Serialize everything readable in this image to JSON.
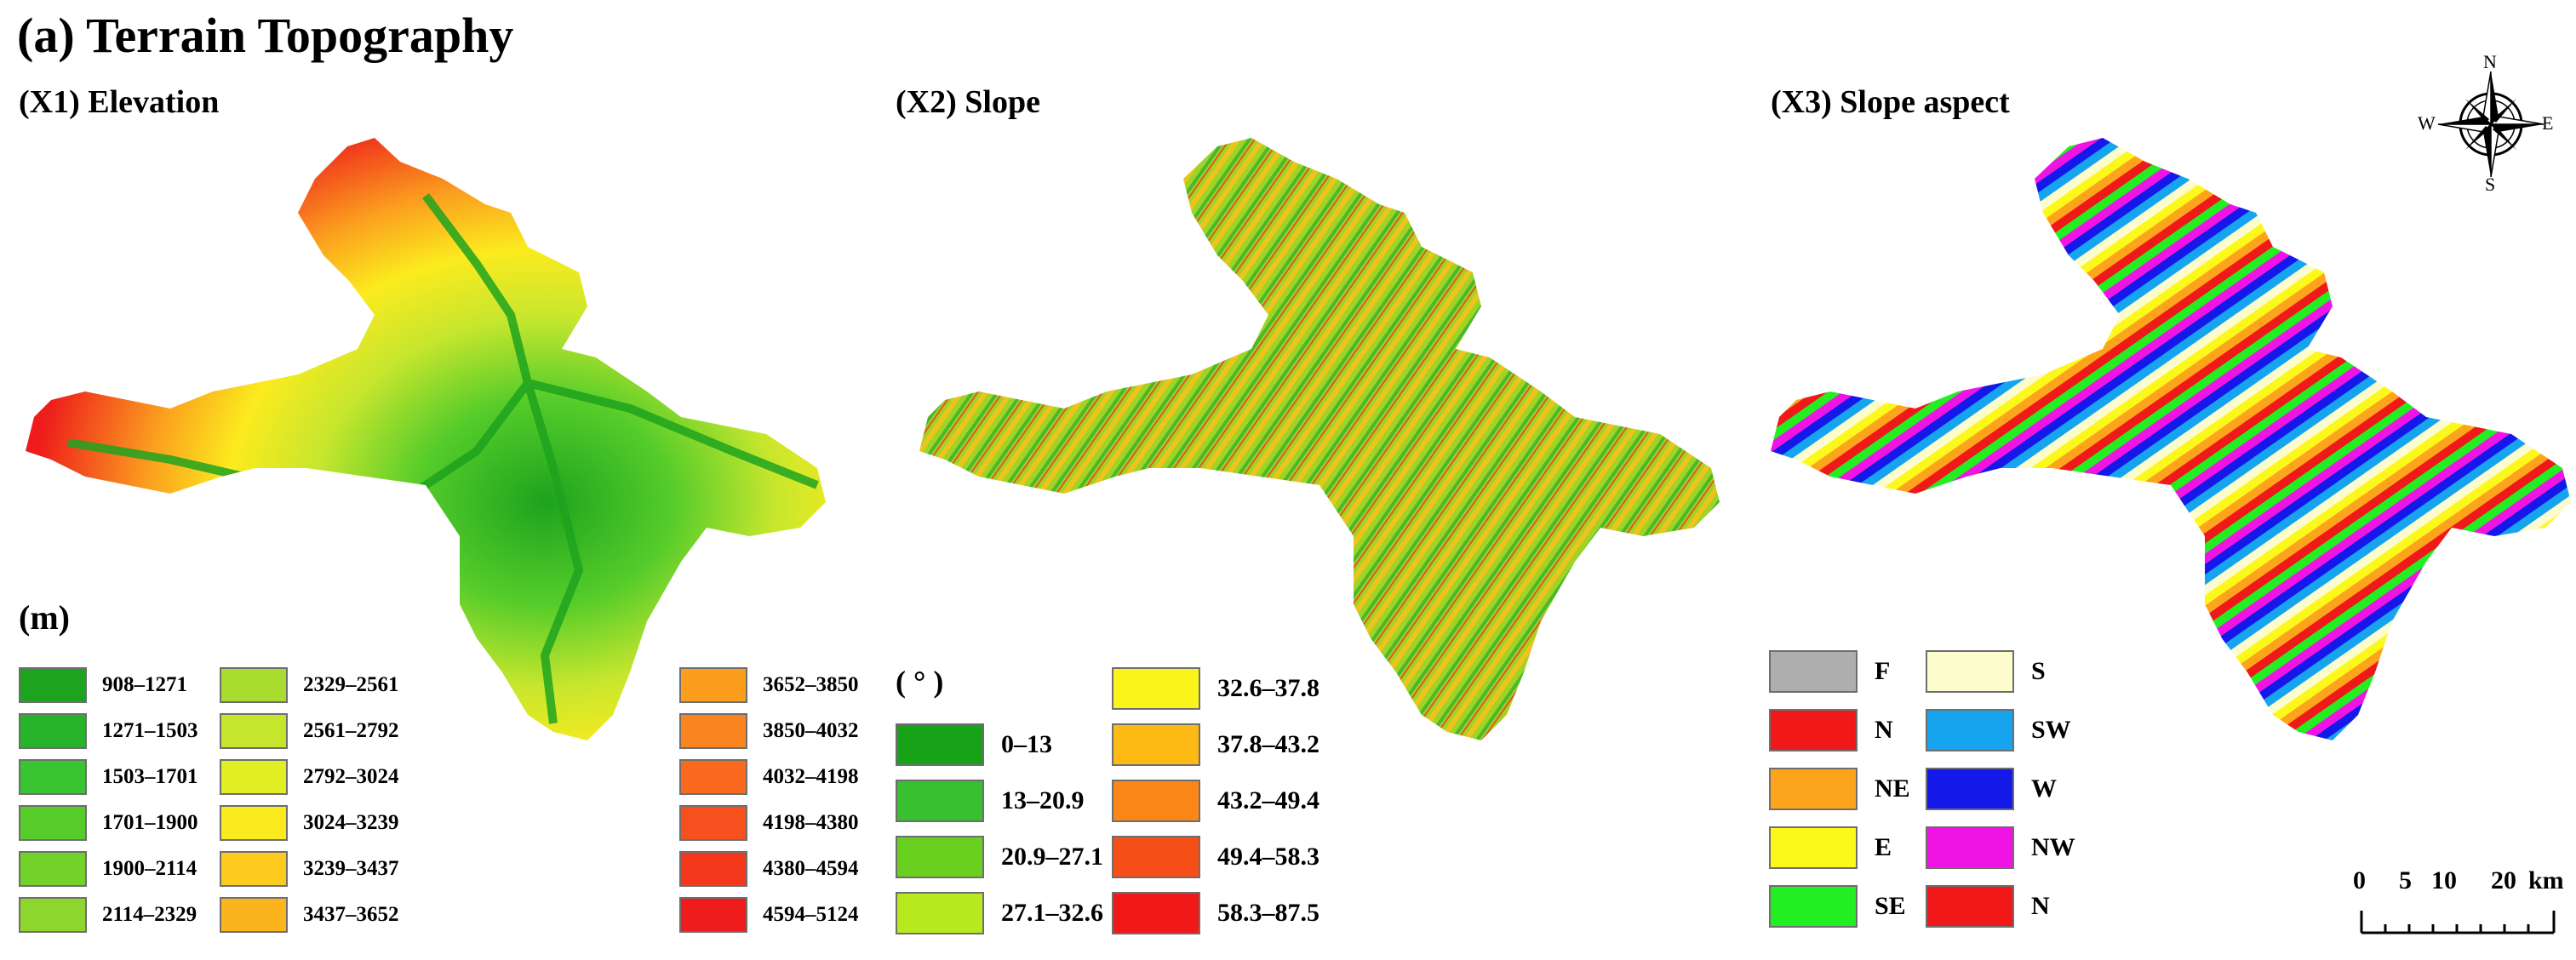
{
  "figure_title": "(a) Terrain Topography",
  "panels": {
    "elevation": {
      "title": "(X1) Elevation",
      "unit": "(m)",
      "legend": [
        {
          "label": "908–1271",
          "color": "#1ea31e"
        },
        {
          "label": "1271–1503",
          "color": "#28b42a"
        },
        {
          "label": "1503–1701",
          "color": "#3ac431"
        },
        {
          "label": "1701–1900",
          "color": "#55cc2a"
        },
        {
          "label": "1900–2114",
          "color": "#72d22a"
        },
        {
          "label": "2114–2329",
          "color": "#8ed62e"
        },
        {
          "label": "2329–2561",
          "color": "#a8dc2e"
        },
        {
          "label": "2561–2792",
          "color": "#c6e62e"
        },
        {
          "label": "2792–3024",
          "color": "#e2ee24"
        },
        {
          "label": "3024–3239",
          "color": "#fbeb1e"
        },
        {
          "label": "3239–3437",
          "color": "#fccb1e"
        },
        {
          "label": "3437–3652",
          "color": "#fbb41c"
        },
        {
          "label": "3652–3850",
          "color": "#fb9e1e"
        },
        {
          "label": "3850–4032",
          "color": "#fa8420"
        },
        {
          "label": "4032–4198",
          "color": "#f96a1e"
        },
        {
          "label": "4198–4380",
          "color": "#f5501e"
        },
        {
          "label": "4380–4594",
          "color": "#f3381c"
        },
        {
          "label": "4594–5124",
          "color": "#ee1c1c"
        }
      ]
    },
    "slope": {
      "title": "(X2) Slope",
      "unit": "( ° )",
      "legend": [
        {
          "label": "0–13",
          "color": "#18a218"
        },
        {
          "label": "13–20.9",
          "color": "#38c030"
        },
        {
          "label": "20.9–27.1",
          "color": "#6ad020"
        },
        {
          "label": "27.1–32.6",
          "color": "#b8e81e"
        },
        {
          "label": "32.6–37.8",
          "color": "#fbf41a"
        },
        {
          "label": "37.8–43.2",
          "color": "#fdb914"
        },
        {
          "label": "43.2–49.4",
          "color": "#fb8716"
        },
        {
          "label": "49.4–58.3",
          "color": "#f54e16"
        },
        {
          "label": "58.3–87.5",
          "color": "#f01818"
        }
      ]
    },
    "aspect": {
      "title": "(X3) Slope aspect",
      "legend": [
        {
          "label": "F",
          "color": "#aeaeae"
        },
        {
          "label": "N",
          "color": "#f01818"
        },
        {
          "label": "NE",
          "color": "#fca51c"
        },
        {
          "label": "E",
          "color": "#fcf81c"
        },
        {
          "label": "SE",
          "color": "#22ee22"
        },
        {
          "label": "S",
          "color": "#fcfccc"
        },
        {
          "label": "SW",
          "color": "#16a4ee"
        },
        {
          "label": "W",
          "color": "#1418e8"
        },
        {
          "label": "NW",
          "color": "#f014e4"
        },
        {
          "label": "N",
          "color": "#f01818"
        }
      ]
    }
  },
  "compass": {
    "n": "N",
    "s": "S",
    "e": "E",
    "w": "W"
  },
  "scale_bar": {
    "ticks": [
      "0",
      "5",
      "10",
      "20"
    ],
    "unit": "km"
  }
}
